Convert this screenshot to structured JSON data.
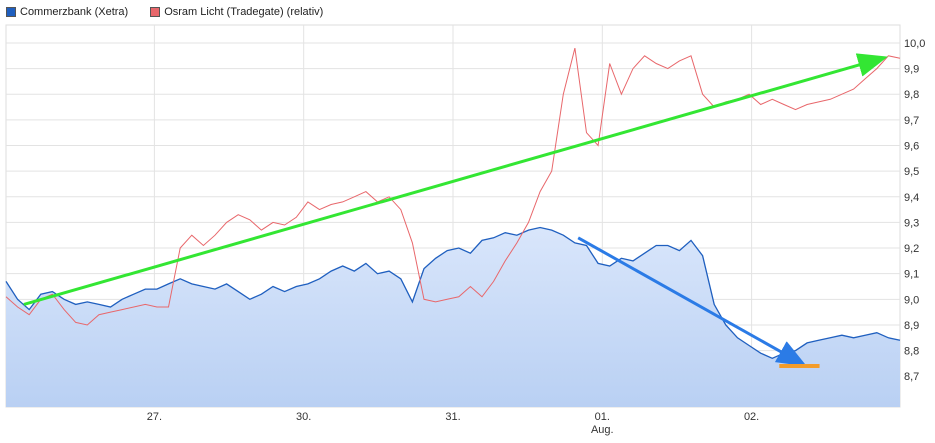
{
  "legend": {
    "series1": "Commerzbank (Xetra)",
    "series2": "Osram Licht (Tradegate) (relativ)"
  },
  "colors": {
    "commerzbank": "#1f5fbf",
    "commerzbank_fill": "#c7daf7",
    "osram": "#e8676b",
    "green_arrow": "#33e633",
    "blue_arrow": "#2b7be6",
    "orange_marker": "#f39c2a"
  },
  "chart_data": {
    "type": "line",
    "title": "",
    "xlabel": "",
    "ylabel": "",
    "ylim": [
      8.58,
      10.07
    ],
    "yticks": [
      "10,0",
      "9,9",
      "9,8",
      "9,7",
      "9,6",
      "9,5",
      "9,4",
      "9,3",
      "9,2",
      "9,1",
      "9,0",
      "8,9",
      "8,8",
      "8,7"
    ],
    "xtick_labels": [
      "27.",
      "30.",
      "31.",
      "01.",
      "02."
    ],
    "xtick_sublabel": "Aug.",
    "grid": true,
    "legend_position": "top-left",
    "series": [
      {
        "name": "Commerzbank (Xetra)",
        "style": "area",
        "values": [
          9.07,
          9.0,
          8.96,
          9.02,
          9.03,
          9.0,
          8.98,
          8.99,
          8.98,
          8.97,
          9.0,
          9.02,
          9.04,
          9.04,
          9.06,
          9.08,
          9.06,
          9.05,
          9.04,
          9.06,
          9.03,
          9.0,
          9.02,
          9.05,
          9.03,
          9.05,
          9.06,
          9.08,
          9.11,
          9.13,
          9.11,
          9.14,
          9.1,
          9.11,
          9.08,
          8.99,
          9.12,
          9.16,
          9.19,
          9.2,
          9.18,
          9.23,
          9.24,
          9.26,
          9.25,
          9.27,
          9.28,
          9.27,
          9.25,
          9.22,
          9.21,
          9.14,
          9.13,
          9.16,
          9.15,
          9.18,
          9.21,
          9.21,
          9.19,
          9.23,
          9.17,
          8.98,
          8.9,
          8.85,
          8.82,
          8.79,
          8.77,
          8.79,
          8.8,
          8.83,
          8.84,
          8.85,
          8.86,
          8.85,
          8.86,
          8.87,
          8.85,
          8.84
        ]
      },
      {
        "name": "Osram Licht (Tradegate) (relativ)",
        "style": "line",
        "values": [
          9.01,
          8.97,
          8.94,
          9.0,
          9.02,
          8.96,
          8.91,
          8.9,
          8.94,
          8.95,
          8.96,
          8.97,
          8.98,
          8.97,
          8.97,
          9.2,
          9.25,
          9.21,
          9.25,
          9.3,
          9.33,
          9.31,
          9.27,
          9.3,
          9.29,
          9.32,
          9.38,
          9.35,
          9.37,
          9.38,
          9.4,
          9.42,
          9.38,
          9.4,
          9.35,
          9.22,
          9.0,
          8.99,
          9.0,
          9.01,
          9.05,
          9.01,
          9.07,
          9.15,
          9.22,
          9.3,
          9.42,
          9.5,
          9.8,
          9.98,
          9.65,
          9.6,
          9.92,
          9.8,
          9.9,
          9.95,
          9.92,
          9.9,
          9.93,
          9.95,
          9.8,
          9.75,
          9.77,
          9.78,
          9.8,
          9.76,
          9.78,
          9.76,
          9.74,
          9.76,
          9.77,
          9.78,
          9.8,
          9.82,
          9.86,
          9.9,
          9.95,
          9.94
        ]
      }
    ],
    "annotations": [
      {
        "type": "arrow",
        "color": "green",
        "from": [
          0.02,
          8.98
        ],
        "to": [
          0.98,
          9.94
        ]
      },
      {
        "type": "arrow",
        "color": "blue",
        "from": [
          0.64,
          9.24
        ],
        "to": [
          0.89,
          8.75
        ]
      },
      {
        "type": "hline",
        "color": "orange",
        "from": [
          0.865,
          8.74
        ],
        "to": [
          0.91,
          8.74
        ]
      }
    ]
  }
}
